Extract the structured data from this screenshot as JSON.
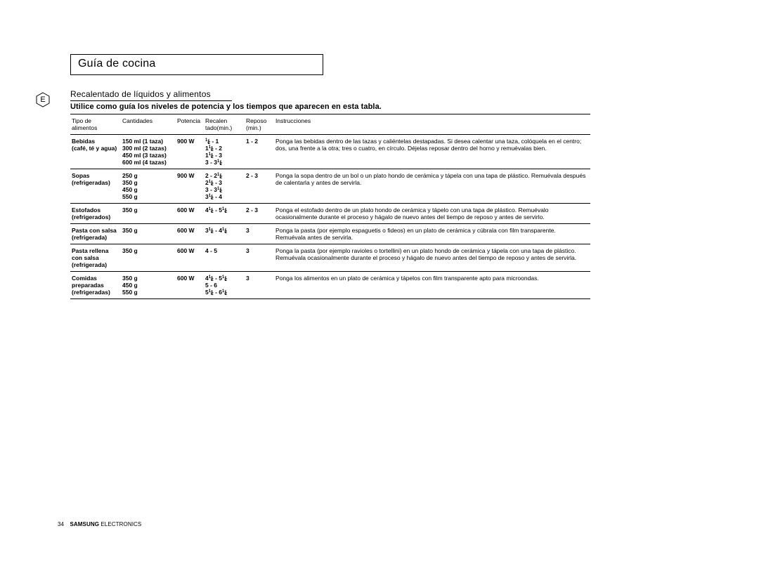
{
  "title": "Guía de cocina",
  "lang_badge": "E",
  "subtitle": "Recalentado de líquidos y alimentos",
  "intro": "Utilice como guía los niveles de potencia y los tiempos que aparecen en esta tabla.",
  "headers": {
    "food": "Tipo de alimentos",
    "cant": "Cantidades",
    "pot": "Potencia",
    "rec": "Recalen tado(min.)",
    "rep": "Reposo (min.)",
    "ins": "Instrucciones"
  },
  "rows": [
    {
      "food": "Bebidas (café, té y agua)",
      "cant": "150 ml (1 taza)\n300 ml (2 tazas)\n450 ml (3 tazas)\n600 ml (4 tazas)",
      "pot": "900 W",
      "rec": "½ - 1\n1½ - 2\n1½ - 3\n3 - 3½",
      "rep": "1 - 2",
      "ins": "Ponga las bebidas dentro de las tazas y caliéntelas destapadas. Si desea calentar una taza, colóquela en el centro; dos, una frente a la otra; tres o cuatro, en círculo. Déjelas reposar dentro del horno y remuévalas bien."
    },
    {
      "food": "Sopas (refrigeradas)",
      "cant": "250 g\n350 g\n450 g\n550 g",
      "pot": "900 W",
      "rec": "2 - 2½\n2½ - 3\n3 - 3½\n3½ - 4",
      "rep": "2 - 3",
      "ins": "Ponga la sopa dentro de un bol o un plato hondo de cerámica y tápela con una tapa de plástico. Remuévala después de calentarla y antes de servirla."
    },
    {
      "food": "Estofados (refrigerados)",
      "cant": "350 g",
      "pot": "600 W",
      "rec": "4½ - 5½",
      "rep": "2 - 3",
      "ins": "Ponga el estofado dentro de un plato hondo de cerámica y tápelo con una tapa de plástico. Remuévalo ocasionalmente durante el proceso y hágalo de nuevo antes del tiempo de reposo y antes de servirlo."
    },
    {
      "food": "Pasta con salsa (refrigerada)",
      "cant": "350 g",
      "pot": "600 W",
      "rec": "3½ - 4½",
      "rep": "3",
      "ins": "Ponga la pasta (por ejemplo espaguetis o fideos) en un plato de cerámica y cúbrala con film transparente. Remuévala antes de servirla."
    },
    {
      "food": "Pasta rellena con salsa (refrigerada)",
      "cant": "350 g",
      "pot": "600 W",
      "rec": "4 - 5",
      "rep": "3",
      "ins": "Ponga la pasta (por ejemplo ravioles o tortellini) en un plato hondo de cerámica y tápela con una tapa de plástico. Remuévala ocasionalmente durante el proceso y hágalo de nuevo antes del tiempo de reposo y antes de servirla."
    },
    {
      "food": "Comidas preparadas (refrigeradas)",
      "cant": "350 g\n450 g\n550 g",
      "pot": "600 W",
      "rec": "4½ - 5½\n5 - 6\n5½ - 6½",
      "rep": "3",
      "ins": "Ponga los alimentos en un plato de cerámica y tápelos con film transparente apto para microondas."
    }
  ],
  "page_number": "34",
  "brand1": "SAMSUNG",
  "brand2": "ELECTRONICS",
  "colors": {
    "text": "#000000",
    "bg": "#ffffff",
    "rule": "#000000"
  },
  "fontsizes": {
    "title": 16,
    "subtitle": 12,
    "intro": 11,
    "table": 8.5,
    "footer": 8
  }
}
